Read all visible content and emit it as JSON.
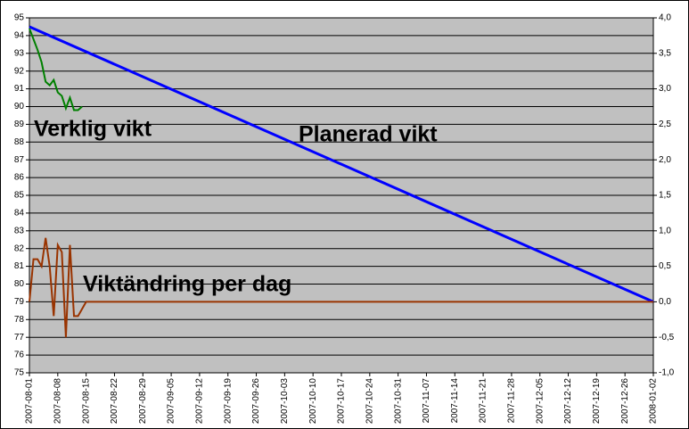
{
  "chart_data": {
    "type": "line",
    "xlim": [
      "2007-08-01",
      "2008-01-02"
    ],
    "xticks": [
      "2007-08-01",
      "2007-08-08",
      "2007-08-15",
      "2007-08-22",
      "2007-08-29",
      "2007-09-05",
      "2007-09-12",
      "2007-09-19",
      "2007-09-26",
      "2007-10-03",
      "2007-10-10",
      "2007-10-17",
      "2007-10-24",
      "2007-10-31",
      "2007-11-07",
      "2007-11-14",
      "2007-11-21",
      "2007-11-28",
      "2007-12-05",
      "2007-12-12",
      "2007-12-19",
      "2007-12-26",
      "2008-01-02"
    ],
    "ylim": [
      75,
      95
    ],
    "yticks": [
      75,
      76,
      77,
      78,
      79,
      80,
      81,
      82,
      83,
      84,
      85,
      86,
      87,
      88,
      89,
      90,
      91,
      92,
      93,
      94,
      95
    ],
    "y2lim": [
      -1,
      4
    ],
    "y2ticks": [
      {
        "value": -1,
        "label": "-1,0"
      },
      {
        "value": -0.5,
        "label": "-0,5"
      },
      {
        "value": 0,
        "label": "0,0"
      },
      {
        "value": 0.5,
        "label": "0,5"
      },
      {
        "value": 1,
        "label": "1,0"
      },
      {
        "value": 1.5,
        "label": "1,5"
      },
      {
        "value": 2,
        "label": "2,0"
      },
      {
        "value": 2.5,
        "label": "2,5"
      },
      {
        "value": 3,
        "label": "3,0"
      },
      {
        "value": 3.5,
        "label": "3,5"
      },
      {
        "value": 4,
        "label": "4,0"
      }
    ],
    "grid": true,
    "series": [
      {
        "name": "Planerad vikt",
        "color": "#0000ff",
        "x": [
          "2007-08-01",
          "2008-01-02"
        ],
        "values": [
          94.5,
          79
        ]
      },
      {
        "name": "Verklig vikt",
        "color": "#008000",
        "x": [
          "2007-08-01",
          "2007-08-02",
          "2007-08-03",
          "2007-08-04",
          "2007-08-05",
          "2007-08-06",
          "2007-08-07",
          "2007-08-08",
          "2007-08-09",
          "2007-08-10",
          "2007-08-11",
          "2007-08-12",
          "2007-08-13",
          "2007-08-14"
        ],
        "values": [
          94.4,
          93.8,
          93.2,
          92.5,
          91.4,
          91.2,
          91.5,
          90.8,
          90.6,
          89.9,
          90.5,
          89.8,
          89.8,
          90.0
        ]
      },
      {
        "name": "Viktändring per dag",
        "color": "#993300",
        "axis": "y2",
        "x": [
          "2007-08-01",
          "2007-08-02",
          "2007-08-03",
          "2007-08-04",
          "2007-08-05",
          "2007-08-06",
          "2007-08-07",
          "2007-08-08",
          "2007-08-09",
          "2007-08-10",
          "2007-08-11",
          "2007-08-12",
          "2007-08-13",
          "2007-08-14",
          "2007-08-15",
          "2008-01-02"
        ],
        "values": [
          0.0,
          0.6,
          0.6,
          0.5,
          0.9,
          0.5,
          -0.2,
          0.8,
          0.7,
          -0.5,
          0.8,
          -0.2,
          -0.2,
          -0.1,
          0.0,
          0.0
        ]
      }
    ]
  }
}
